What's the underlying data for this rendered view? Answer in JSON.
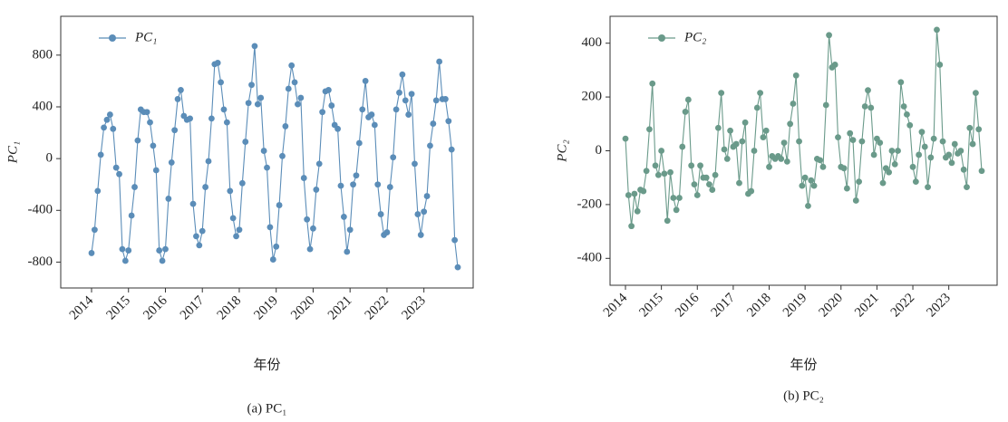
{
  "chart_data": [
    {
      "type": "line",
      "caption": "(a) PC₁",
      "x_label": "年份",
      "y_label": "PC₁",
      "categories": [
        "2014",
        null,
        null,
        null,
        null,
        null,
        null,
        null,
        null,
        null,
        null,
        null,
        "2015",
        null,
        null,
        null,
        null,
        null,
        null,
        null,
        null,
        null,
        null,
        null,
        "2016",
        null,
        null,
        null,
        null,
        null,
        null,
        null,
        null,
        null,
        null,
        null,
        "2017",
        null,
        null,
        null,
        null,
        null,
        null,
        null,
        null,
        null,
        null,
        null,
        "2018",
        null,
        null,
        null,
        null,
        null,
        null,
        null,
        null,
        null,
        null,
        null,
        "2019",
        null,
        null,
        null,
        null,
        null,
        null,
        null,
        null,
        null,
        null,
        null,
        "2020",
        null,
        null,
        null,
        null,
        null,
        null,
        null,
        null,
        null,
        null,
        null,
        "2021",
        null,
        null,
        null,
        null,
        null,
        null,
        null,
        null,
        null,
        null,
        null,
        "2022",
        null,
        null,
        null,
        null,
        null,
        null,
        null,
        null,
        null,
        null,
        null,
        "2023",
        null,
        null,
        null,
        null,
        null,
        null,
        null,
        null,
        null,
        null,
        null
      ],
      "series": [
        {
          "name": "PC₁",
          "color": "#5b8db8",
          "values": [
            -730,
            -550,
            -250,
            30,
            240,
            300,
            340,
            230,
            -70,
            -120,
            -700,
            -790,
            -710,
            -440,
            -220,
            140,
            380,
            360,
            360,
            280,
            100,
            -90,
            -710,
            -790,
            -700,
            -310,
            -30,
            220,
            460,
            530,
            330,
            300,
            310,
            -350,
            -600,
            -670,
            -560,
            -220,
            -20,
            310,
            730,
            740,
            590,
            380,
            280,
            -250,
            -460,
            -600,
            -550,
            -190,
            130,
            430,
            570,
            870,
            420,
            470,
            60,
            -70,
            -530,
            -780,
            -680,
            -360,
            20,
            250,
            540,
            720,
            590,
            420,
            470,
            -150,
            -470,
            -700,
            -540,
            -240,
            -40,
            360,
            520,
            530,
            410,
            260,
            230,
            -210,
            -450,
            -720,
            -550,
            -200,
            -130,
            120,
            380,
            600,
            320,
            340,
            260,
            -200,
            -430,
            -590,
            -570,
            -220,
            10,
            380,
            510,
            650,
            450,
            340,
            500,
            -40,
            -430,
            -590,
            -410,
            -290,
            100,
            270,
            450,
            750,
            460,
            460,
            290,
            70,
            -630,
            -840
          ]
        }
      ],
      "ylim": [
        -1000,
        1100
      ],
      "yticks": [
        -800,
        -400,
        0,
        400,
        800
      ],
      "legend": "upper left"
    },
    {
      "type": "line",
      "caption": "(b) PC₂",
      "x_label": "年份",
      "y_label": "PC₂",
      "categories": [
        "2014",
        null,
        null,
        null,
        null,
        null,
        null,
        null,
        null,
        null,
        null,
        null,
        "2015",
        null,
        null,
        null,
        null,
        null,
        null,
        null,
        null,
        null,
        null,
        null,
        "2016",
        null,
        null,
        null,
        null,
        null,
        null,
        null,
        null,
        null,
        null,
        null,
        "2017",
        null,
        null,
        null,
        null,
        null,
        null,
        null,
        null,
        null,
        null,
        null,
        "2018",
        null,
        null,
        null,
        null,
        null,
        null,
        null,
        null,
        null,
        null,
        null,
        "2019",
        null,
        null,
        null,
        null,
        null,
        null,
        null,
        null,
        null,
        null,
        null,
        "2020",
        null,
        null,
        null,
        null,
        null,
        null,
        null,
        null,
        null,
        null,
        null,
        "2021",
        null,
        null,
        null,
        null,
        null,
        null,
        null,
        null,
        null,
        null,
        null,
        "2022",
        null,
        null,
        null,
        null,
        null,
        null,
        null,
        null,
        null,
        null,
        null,
        "2023",
        null,
        null,
        null,
        null,
        null,
        null,
        null,
        null,
        null,
        null,
        null
      ],
      "series": [
        {
          "name": "PC₂",
          "color": "#6a9a8a",
          "values": [
            45,
            -165,
            -280,
            -160,
            -225,
            -145,
            -150,
            -75,
            80,
            250,
            -55,
            -90,
            0,
            -85,
            -260,
            -80,
            -175,
            -220,
            -175,
            15,
            145,
            190,
            -55,
            -125,
            -165,
            -55,
            -100,
            -100,
            -125,
            -145,
            -90,
            85,
            215,
            5,
            -30,
            75,
            15,
            25,
            -120,
            35,
            105,
            -160,
            -150,
            0,
            160,
            215,
            50,
            75,
            -60,
            -20,
            -30,
            -20,
            -30,
            30,
            -40,
            100,
            175,
            280,
            35,
            -130,
            -100,
            -205,
            -110,
            -130,
            -30,
            -35,
            -60,
            170,
            430,
            310,
            320,
            50,
            -60,
            -65,
            -140,
            65,
            40,
            -185,
            -115,
            35,
            165,
            225,
            160,
            -15,
            45,
            30,
            -120,
            -65,
            -80,
            0,
            -50,
            0,
            255,
            165,
            135,
            95,
            -60,
            -115,
            -15,
            70,
            15,
            -135,
            -25,
            45,
            450,
            320,
            35,
            -25,
            -15,
            -45,
            25,
            -10,
            0,
            -70,
            -135,
            85,
            25,
            215,
            80,
            -75
          ]
        }
      ],
      "ylim": [
        -500,
        500
      ],
      "yticks": [
        -400,
        -200,
        0,
        200,
        400
      ],
      "legend": "upper left"
    }
  ]
}
